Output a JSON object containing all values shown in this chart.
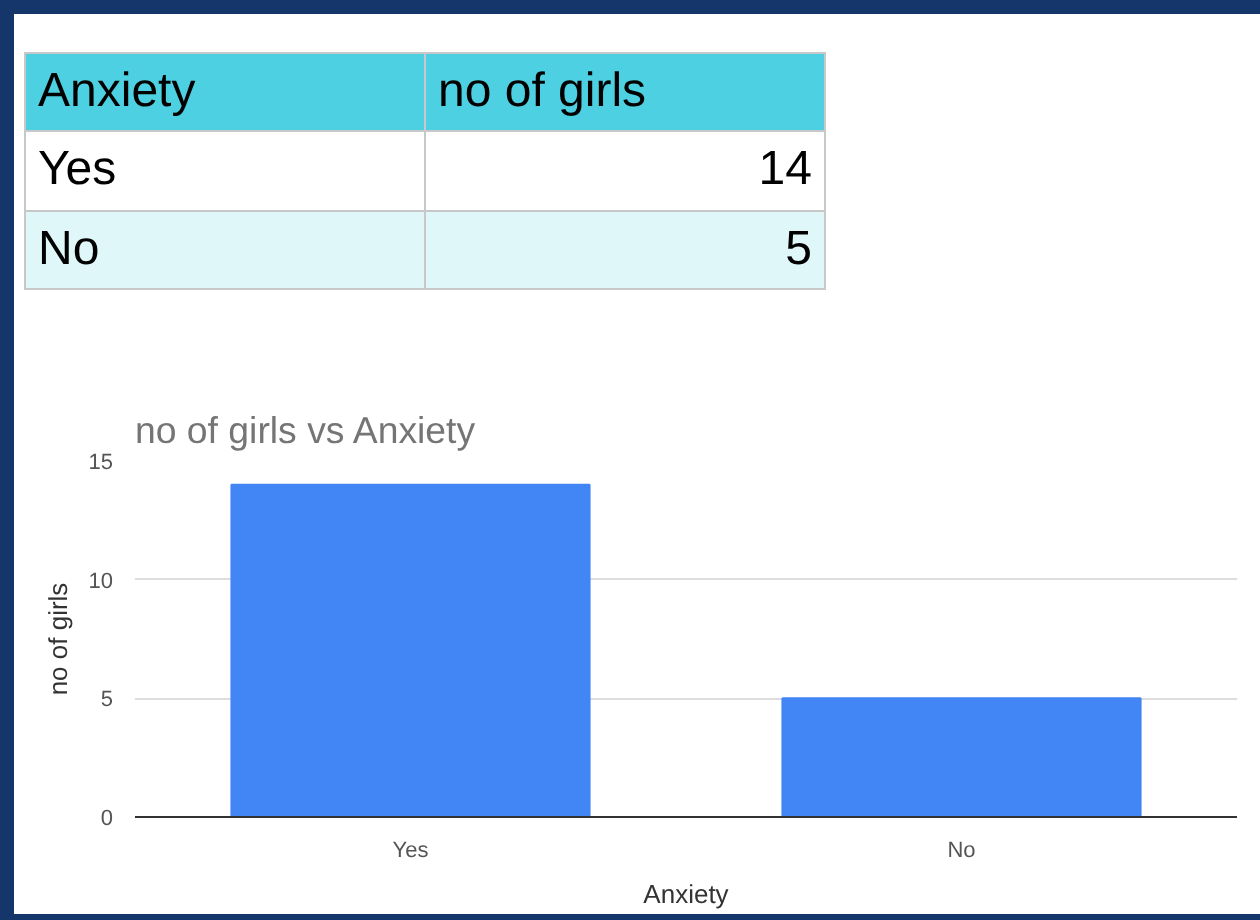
{
  "chart_data": [
    {
      "type": "other",
      "annotations": [
        "Anxiety",
        "no of girls",
        "Yes",
        "14",
        "No",
        "5"
      ]
    },
    {
      "type": "bar",
      "title": "no of girls  vs Anxiety",
      "xlabel": "Anxiety",
      "ylabel": "no of girls",
      "categories": [
        "Yes",
        "No"
      ],
      "values": [
        14,
        5
      ],
      "color": "#4285f4",
      "ylim": [
        0,
        15
      ],
      "yticks": [
        0,
        5,
        10,
        15
      ],
      "grid": "y"
    }
  ]
}
